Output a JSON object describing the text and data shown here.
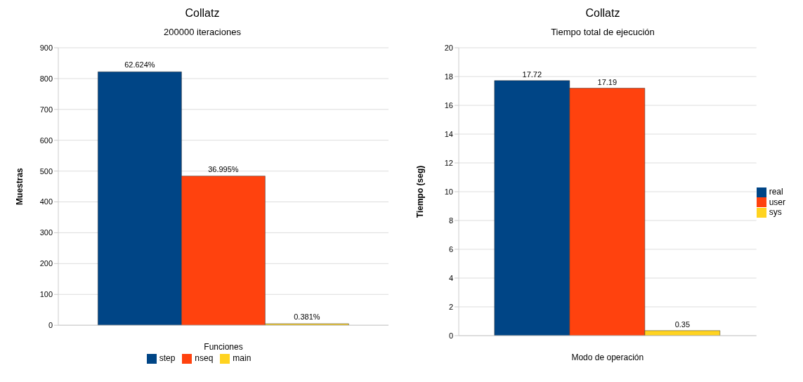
{
  "chart_data": [
    {
      "type": "bar",
      "title": "Collatz",
      "subtitle": "200000 iteraciones",
      "xlabel": "Funciones",
      "ylabel": "Muestras",
      "categories": [
        null
      ],
      "series": [
        {
          "name": "step",
          "color": "#004586",
          "values": [
            822
          ]
        },
        {
          "name": "nseq",
          "color": "#ff420e",
          "values": [
            484
          ]
        },
        {
          "name": "main",
          "color": "#ffd320",
          "values": [
            5
          ]
        }
      ],
      "annotations": [
        {
          "text": "62.624%",
          "y": 822
        },
        {
          "text": "36.995%",
          "y": 484
        },
        {
          "text": "0.381%",
          "y": 5
        }
      ],
      "ylim": [
        0,
        900
      ],
      "yticks": [
        0,
        100,
        200,
        300,
        400,
        500,
        600,
        700,
        800,
        900
      ],
      "grid": "y",
      "legend": "bottom"
    },
    {
      "type": "bar",
      "title": "Collatz",
      "subtitle": "Tiempo total de ejecución",
      "xlabel": "Modo de operación",
      "ylabel": "Tiempo (seg)",
      "categories": [
        null
      ],
      "series": [
        {
          "name": "real",
          "color": "#004586",
          "values": [
            17.72
          ]
        },
        {
          "name": "user",
          "color": "#ff420e",
          "values": [
            17.19
          ]
        },
        {
          "name": "sys",
          "color": "#ffd320",
          "values": [
            0.35
          ]
        }
      ],
      "ylim": [
        0,
        20
      ],
      "yticks": [
        0,
        2,
        4,
        6,
        8,
        10,
        12,
        14,
        16,
        18,
        20
      ],
      "grid": "y",
      "legend": "right",
      "data_labels": true
    }
  ]
}
